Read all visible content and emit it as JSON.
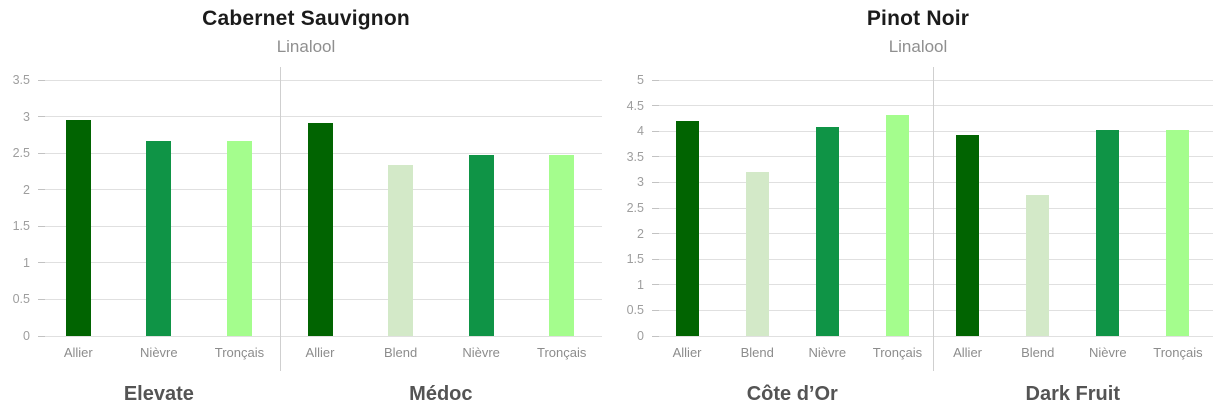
{
  "chart_data": [
    {
      "type": "bar",
      "variant": "grouped_bar",
      "title": "Cabernet Sauvignon",
      "subtitle": "Linalool",
      "xlabel": "",
      "ylabel": "",
      "ylim": [
        0,
        3.5
      ],
      "yticks": [
        "0",
        "0.5",
        "1",
        "1.5",
        "2",
        "2.5",
        "3",
        "3.5"
      ],
      "grid": true,
      "legend": false,
      "groups": [
        {
          "label": "Elevate",
          "bars": [
            {
              "oak": "Allier",
              "value": 2.95,
              "color": "allier"
            },
            {
              "oak": "Nièvre",
              "value": 2.66,
              "color": "nievre"
            },
            {
              "oak": "Tronçais",
              "value": 2.66,
              "color": "troncais"
            }
          ]
        },
        {
          "label": "Médoc",
          "bars": [
            {
              "oak": "Allier",
              "value": 2.91,
              "color": "allier"
            },
            {
              "oak": "Blend",
              "value": 2.34,
              "color": "blend"
            },
            {
              "oak": "Nièvre",
              "value": 2.47,
              "color": "nievre"
            },
            {
              "oak": "Tronçais",
              "value": 2.47,
              "color": "troncais"
            }
          ]
        }
      ]
    },
    {
      "type": "bar",
      "variant": "grouped_bar",
      "title": "Pinot Noir",
      "subtitle": "Linalool",
      "xlabel": "",
      "ylabel": "",
      "ylim": [
        0,
        5
      ],
      "yticks": [
        "0",
        "0.5",
        "1",
        "1.5",
        "2",
        "2.5",
        "3",
        "3.5",
        "4",
        "4.5",
        "5"
      ],
      "grid": true,
      "legend": false,
      "groups": [
        {
          "label": "Côte d’Or",
          "bars": [
            {
              "oak": "Allier",
              "value": 4.2,
              "color": "allier"
            },
            {
              "oak": "Blend",
              "value": 3.2,
              "color": "blend"
            },
            {
              "oak": "Nièvre",
              "value": 4.08,
              "color": "nievre"
            },
            {
              "oak": "Tronçais",
              "value": 4.32,
              "color": "troncais"
            }
          ]
        },
        {
          "label": "Dark Fruit",
          "bars": [
            {
              "oak": "Allier",
              "value": 3.93,
              "color": "allier"
            },
            {
              "oak": "Blend",
              "value": 2.75,
              "color": "blend"
            },
            {
              "oak": "Nièvre",
              "value": 4.03,
              "color": "nievre"
            },
            {
              "oak": "Tronçais",
              "value": 4.03,
              "color": "troncais"
            }
          ]
        }
      ]
    }
  ],
  "palette": {
    "allier": "#016401",
    "blend": "#d3e9c8",
    "nievre": "#0f9446",
    "troncais": "#a4fd8d"
  },
  "colors": {
    "title": "#1b1b1b",
    "subtitle": "#8f8f8f",
    "tick": "#9e9e9e",
    "xlabel": "#8c8c8c",
    "group_label": "#545454",
    "gridline": "#e0e0e0",
    "divider": "#cfcfcf",
    "background": "#ffffff"
  }
}
